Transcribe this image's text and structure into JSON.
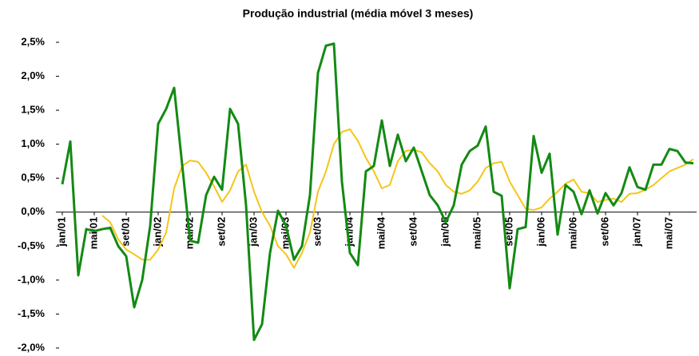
{
  "chart_data": {
    "type": "line",
    "title": "Produção industrial (média móvel 3 meses)",
    "categories": [
      "jan/01",
      null,
      null,
      null,
      "mai/01",
      null,
      null,
      null,
      "set/01",
      null,
      null,
      null,
      "jan/02",
      null,
      null,
      null,
      "mai/02",
      null,
      null,
      null,
      "set/02",
      null,
      null,
      null,
      "jan/03",
      null,
      null,
      null,
      "mai/03",
      null,
      null,
      null,
      "set/03",
      null,
      null,
      null,
      "jan/04",
      null,
      null,
      null,
      "mai/04",
      null,
      null,
      null,
      "set/04",
      null,
      null,
      null,
      "jan/05",
      null,
      null,
      null,
      "mai/05",
      null,
      null,
      null,
      "set/05",
      null,
      null,
      null,
      "jan/06",
      null,
      null,
      null,
      "mai/06",
      null,
      null,
      null,
      "set/06",
      null,
      null,
      null,
      "jan/07",
      null,
      null,
      null,
      "mai/07",
      null,
      null,
      null
    ],
    "series": [
      {
        "color": "#138a13",
        "values": [
          0.41,
          1.04,
          -0.93,
          -0.25,
          -0.28,
          -0.25,
          -0.23,
          -0.5,
          -0.65,
          -1.4,
          -1.0,
          -0.2,
          1.3,
          1.52,
          1.83,
          0.7,
          -0.42,
          -0.45,
          0.25,
          0.52,
          0.33,
          1.52,
          1.3,
          0.1,
          -1.88,
          -1.65,
          -0.6,
          0.02,
          -0.2,
          -0.7,
          -0.5,
          0.25,
          2.05,
          2.45,
          2.48,
          0.45,
          -0.6,
          -0.78,
          0.6,
          0.68,
          1.35,
          0.68,
          1.14,
          0.75,
          0.95,
          0.6,
          0.25,
          0.1,
          -0.15,
          0.1,
          0.7,
          0.9,
          0.98,
          1.26,
          0.3,
          0.24,
          -1.12,
          -0.25,
          -0.22,
          1.12,
          0.58,
          0.86,
          -0.33,
          0.4,
          0.3,
          -0.03,
          0.32,
          -0.02,
          0.28,
          0.1,
          0.28,
          0.66,
          0.37,
          0.33,
          0.7,
          0.7,
          0.93,
          0.9,
          0.73,
          0.72
        ]
      },
      {
        "color": "#f5c518",
        "values": [
          null,
          null,
          null,
          null,
          null,
          -0.05,
          -0.15,
          -0.4,
          -0.55,
          -0.62,
          -0.7,
          -0.7,
          -0.55,
          -0.3,
          0.35,
          0.68,
          0.76,
          0.74,
          0.58,
          0.38,
          0.15,
          0.32,
          0.6,
          0.7,
          0.3,
          0.0,
          -0.2,
          -0.5,
          -0.62,
          -0.82,
          -0.6,
          -0.3,
          0.3,
          0.6,
          1.0,
          1.18,
          1.22,
          1.05,
          0.8,
          0.6,
          0.35,
          0.4,
          0.75,
          0.9,
          0.92,
          0.88,
          0.72,
          0.6,
          0.4,
          0.3,
          0.27,
          0.32,
          0.45,
          0.65,
          0.72,
          0.74,
          0.45,
          0.25,
          0.05,
          0.03,
          0.07,
          0.2,
          0.3,
          0.42,
          0.48,
          0.3,
          0.28,
          0.15,
          0.18,
          0.2,
          0.15,
          0.27,
          0.28,
          0.33,
          0.4,
          0.5,
          0.6,
          0.65,
          0.7,
          0.78
        ]
      }
    ],
    "ylim": [
      -2.0,
      2.5
    ],
    "yticks": [
      {
        "value": -2.0,
        "label": "-2,0%"
      },
      {
        "value": -1.5,
        "label": "-1,5%"
      },
      {
        "value": -1.0,
        "label": "-1,0%"
      },
      {
        "value": -0.5,
        "label": "-0,5%"
      },
      {
        "value": 0.0,
        "label": "0,0%"
      },
      {
        "value": 0.5,
        "label": "0,5%"
      },
      {
        "value": 1.0,
        "label": "1,0%"
      },
      {
        "value": 1.5,
        "label": "1,5%"
      },
      {
        "value": 2.0,
        "label": "2,0%"
      },
      {
        "value": 2.5,
        "label": "2,5%"
      }
    ]
  }
}
